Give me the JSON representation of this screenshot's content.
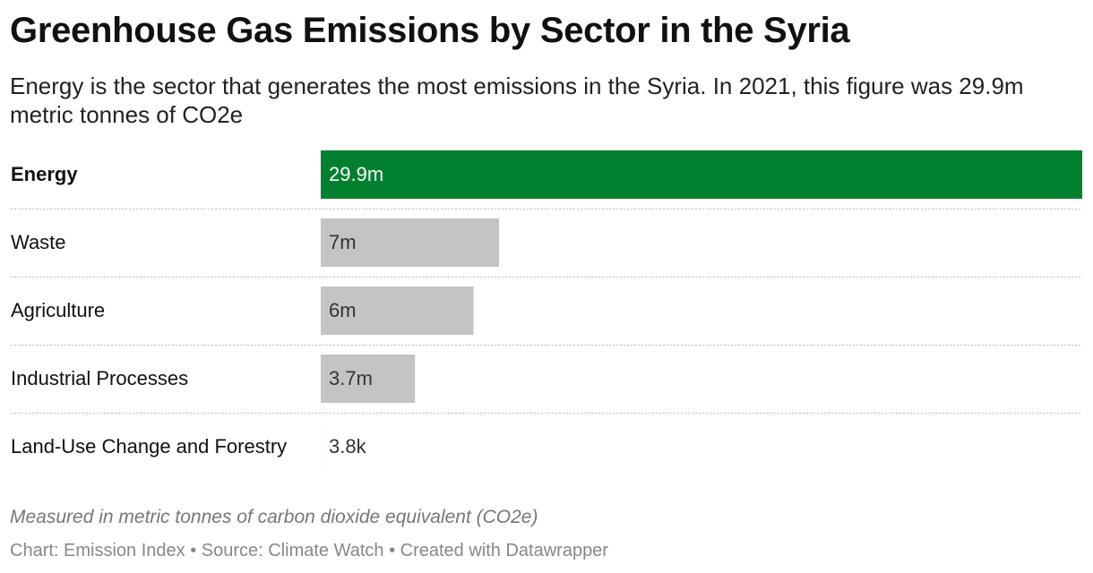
{
  "chart_data": {
    "type": "bar",
    "title": "Greenhouse Gas Emissions by Sector in the Syria",
    "subtitle": "Energy is the sector that generates the most emissions in the Syria. In 2021, this figure was 29.9m metric tonnes of CO2e",
    "notes": "Measured in metric tonnes of carbon dioxide equivalent (CO2e)",
    "footer": "Chart: Emission Index • Source: Climate Watch • Created with Datawrapper",
    "categories": [
      "Energy",
      "Waste",
      "Agriculture",
      "Industrial Processes",
      "Land-Use Change and Forestry"
    ],
    "values": [
      29900000,
      7000000,
      6000000,
      3700000,
      3800
    ],
    "value_labels": [
      "29.9m",
      "7m",
      "6m",
      "3.7m",
      "3.8k"
    ],
    "colors": [
      "#00802f",
      "#c4c4c4",
      "#c4c4c4",
      "#c4c4c4",
      "#c4c4c4"
    ],
    "highlight": "Energy"
  }
}
